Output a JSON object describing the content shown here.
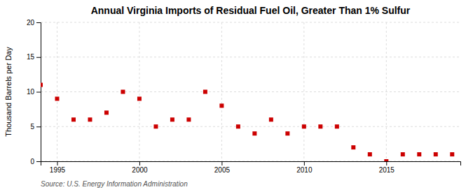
{
  "chart_data": {
    "type": "scatter",
    "title": "Annual Virginia Imports of Residual Fuel Oil, Greater Than 1% Sulfur",
    "y_label": "Thousand Barrels per Day",
    "annotations": [
      "Source: U.S. Energy Information Administration"
    ],
    "x": [
      1994,
      1995,
      1996,
      1997,
      1998,
      1999,
      2000,
      2001,
      2002,
      2003,
      2004,
      2005,
      2006,
      2007,
      2008,
      2009,
      2010,
      2011,
      2012,
      2013,
      2014,
      2015,
      2016,
      2017,
      2018,
      2019
    ],
    "values": [
      11,
      9,
      6,
      6,
      7,
      10,
      9,
      5,
      6,
      6,
      10,
      8,
      5,
      4,
      6,
      4,
      5,
      5,
      5,
      2,
      1,
      0,
      1,
      1,
      1,
      1
    ],
    "color": "#cc0000",
    "marker": "square",
    "xlim": [
      1994.0,
      2019.5
    ],
    "ylim": [
      0,
      20
    ],
    "xticks": [
      1995,
      2000,
      2005,
      2010,
      2015
    ],
    "yticks": [
      0,
      5,
      10,
      15,
      20
    ],
    "grid": true
  }
}
